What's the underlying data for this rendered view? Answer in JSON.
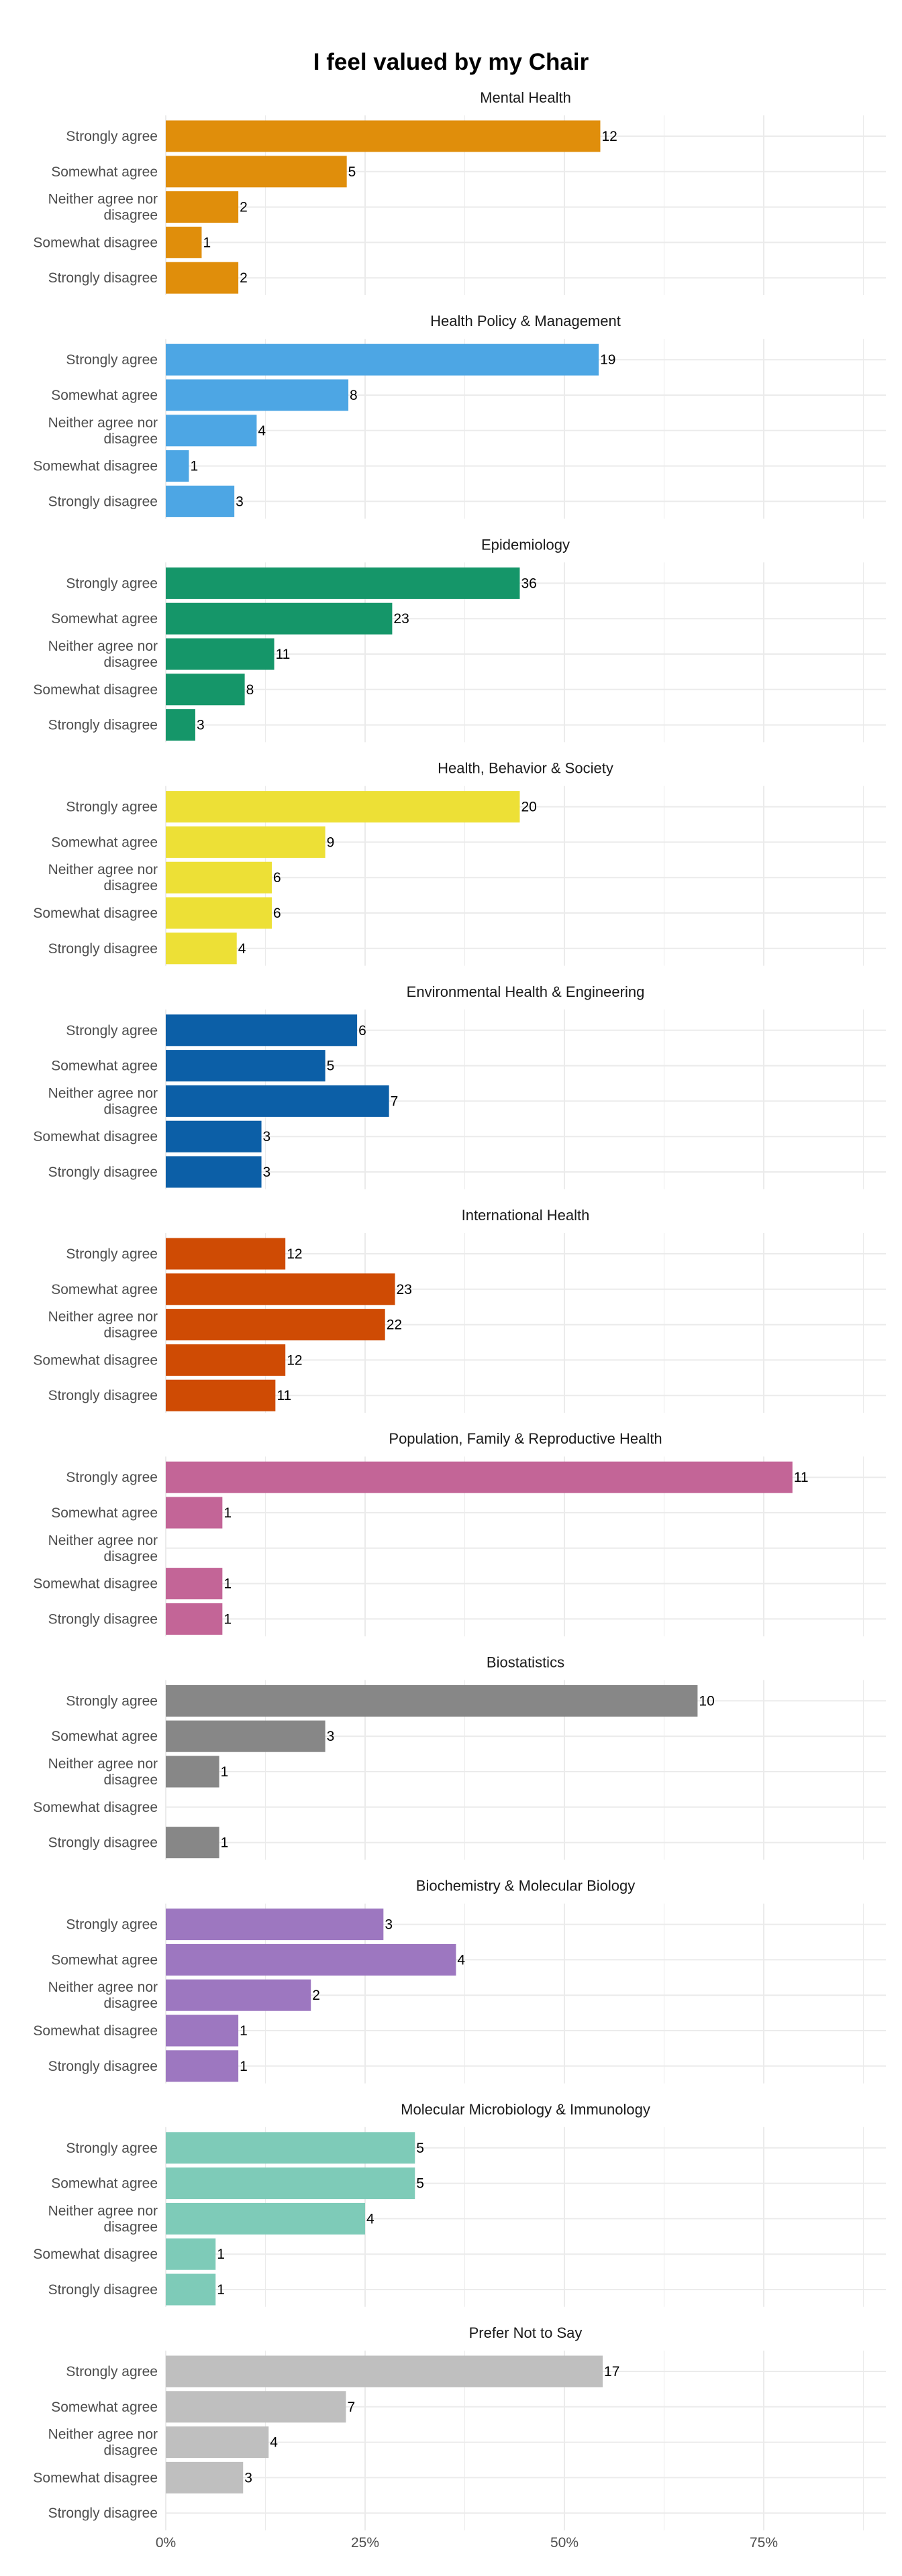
{
  "chart_data": {
    "type": "bar",
    "orientation": "horizontal",
    "title": "I feel valued by my Chair",
    "categories": [
      "Strongly agree",
      "Somewhat agree",
      "Neither agree nor disagree",
      "Somewhat disagree",
      "Strongly disagree"
    ],
    "category_lines": [
      [
        "Strongly agree"
      ],
      [
        "Somewhat agree"
      ],
      [
        "Neither agree nor",
        "disagree"
      ],
      [
        "Somewhat disagree"
      ],
      [
        "Strongly disagree"
      ]
    ],
    "x_ticks": [
      "0%",
      "25%",
      "50%",
      "75%"
    ],
    "xlim": [
      0,
      0.9
    ],
    "grid": true,
    "legend": "none",
    "panels": [
      {
        "name": "Mental Health",
        "color": "#E08E0B",
        "counts": [
          12,
          5,
          2,
          1,
          2
        ],
        "labels": [
          "12",
          "5",
          "2",
          "1",
          "2"
        ],
        "share": [
          0.545,
          0.227,
          0.091,
          0.045,
          0.091
        ]
      },
      {
        "name": "Health Policy & Management",
        "color": "#4DA6E4",
        "counts": [
          19,
          8,
          4,
          1,
          3
        ],
        "labels": [
          "19",
          "8",
          "4",
          "1",
          "3"
        ],
        "share": [
          0.543,
          0.229,
          0.114,
          0.029,
          0.086
        ]
      },
      {
        "name": "Epidemiology",
        "color": "#159669",
        "counts": [
          36,
          23,
          11,
          8,
          3
        ],
        "labels": [
          "36",
          "23",
          "11",
          "8",
          "3"
        ],
        "share": [
          0.444,
          0.284,
          0.136,
          0.099,
          0.037
        ]
      },
      {
        "name": "Health, Behavior & Society",
        "color": "#EDE036",
        "counts": [
          20,
          9,
          6,
          6,
          4
        ],
        "labels": [
          "20",
          "9",
          "6",
          "6",
          "4"
        ],
        "share": [
          0.444,
          0.2,
          0.133,
          0.133,
          0.089
        ]
      },
      {
        "name": "Environmental Health & Engineering",
        "color": "#0C5FA7",
        "counts": [
          6,
          5,
          7,
          3,
          3
        ],
        "labels": [
          "6",
          "5",
          "7",
          "3",
          "3"
        ],
        "share": [
          0.24,
          0.2,
          0.28,
          0.12,
          0.12
        ]
      },
      {
        "name": "International Health",
        "color": "#CF4B04",
        "counts": [
          12,
          23,
          22,
          12,
          11
        ],
        "labels": [
          "12",
          "23",
          "22",
          "12",
          "11"
        ],
        "share": [
          0.15,
          0.2875,
          0.275,
          0.15,
          0.1375
        ]
      },
      {
        "name": "Population, Family & Reproductive Health",
        "color": "#C36597",
        "counts": [
          11,
          1,
          null,
          1,
          1
        ],
        "labels": [
          "11",
          "1",
          "",
          "1",
          "1"
        ],
        "share": [
          0.786,
          0.071,
          0,
          0.071,
          0.071
        ]
      },
      {
        "name": "Biostatistics",
        "color": "#878787",
        "counts": [
          10,
          3,
          1,
          null,
          1
        ],
        "labels": [
          "10",
          "3",
          "1",
          "",
          "1"
        ],
        "share": [
          0.667,
          0.2,
          0.067,
          0,
          0.067
        ]
      },
      {
        "name": "Biochemistry & Molecular Biology",
        "color": "#9D77C0",
        "counts": [
          3,
          4,
          2,
          1,
          1
        ],
        "labels": [
          "3",
          "4",
          "2",
          "1",
          "1"
        ],
        "share": [
          0.273,
          0.364,
          0.182,
          0.091,
          0.091
        ]
      },
      {
        "name": "Molecular Microbiology & Immunology",
        "color": "#7ECBB8",
        "counts": [
          5,
          5,
          4,
          1,
          1
        ],
        "labels": [
          "5",
          "5",
          "4",
          "1",
          "1"
        ],
        "share": [
          0.3125,
          0.3125,
          0.25,
          0.0625,
          0.0625
        ]
      },
      {
        "name": "Prefer Not to Say",
        "color": "#BFBFBF",
        "counts": [
          17,
          7,
          4,
          3,
          null
        ],
        "labels": [
          "17",
          "7",
          "4",
          "3",
          ""
        ],
        "share": [
          0.548,
          0.226,
          0.129,
          0.097,
          0
        ]
      }
    ]
  }
}
